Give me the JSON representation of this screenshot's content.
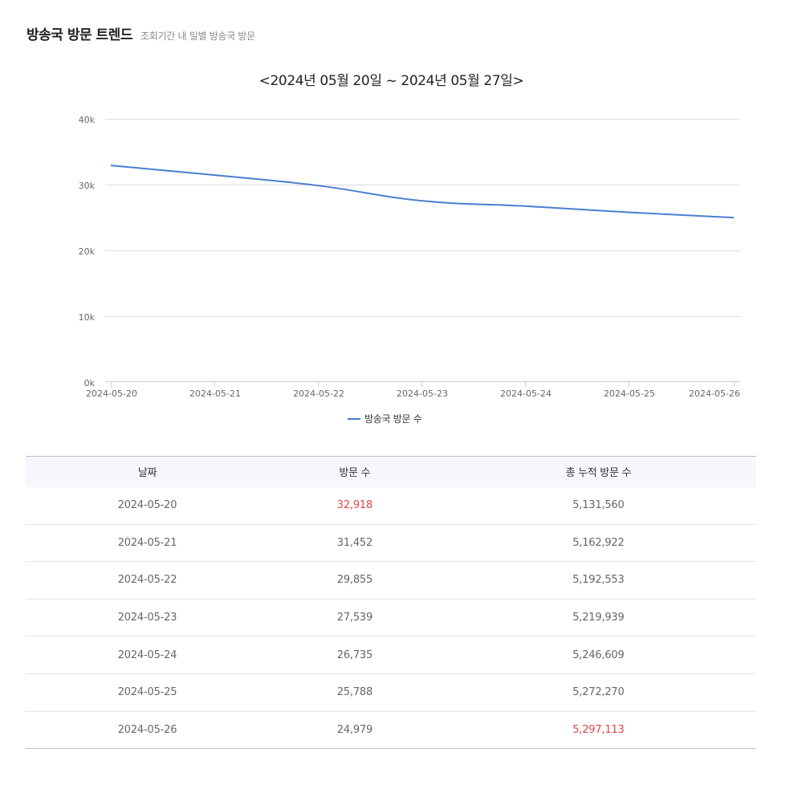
{
  "header": {
    "title": "방송국 방문 트렌드",
    "subtitle": "조회기간 내 일별 방송국 방문"
  },
  "chart": {
    "title": "<2024년 05월 20일 ~ 2024년 05월 27일>",
    "legend_label": "방송국 방문 수",
    "line_color": "#4a7fd1"
  },
  "chart_data": {
    "type": "line",
    "title": "<2024년 05월 20일 ~ 2024년 05월 27일>",
    "xlabel": "",
    "ylabel": "",
    "x": [
      "2024-05-20",
      "2024-05-21",
      "2024-05-22",
      "2024-05-23",
      "2024-05-24",
      "2024-05-25",
      "2024-05-26"
    ],
    "series": [
      {
        "name": "방송국 방문 수",
        "values": [
          32918,
          31452,
          29855,
          27539,
          26735,
          25788,
          24979
        ],
        "color": "#4a7fd1"
      }
    ],
    "yticks": [
      "0k",
      "10k",
      "20k",
      "30k",
      "40k"
    ],
    "ylim": [
      0,
      40000
    ],
    "grid": true,
    "legend_position": "bottom"
  },
  "table": {
    "headers": [
      "날짜",
      "방문 수",
      "총 누적 방문 수"
    ],
    "rows": [
      {
        "date": "2024-05-20",
        "visits": "32,918",
        "total": "5,131,560"
      },
      {
        "date": "2024-05-21",
        "visits": "31,452",
        "total": "5,162,922"
      },
      {
        "date": "2024-05-22",
        "visits": "29,855",
        "total": "5,192,553"
      },
      {
        "date": "2024-05-23",
        "visits": "27,539",
        "total": "5,219,939"
      },
      {
        "date": "2024-05-24",
        "visits": "26,735",
        "total": "5,246,609"
      },
      {
        "date": "2024-05-25",
        "visits": "25,788",
        "total": "5,272,270"
      },
      {
        "date": "2024-05-26",
        "visits": "24,979",
        "total": "5,297,113"
      }
    ],
    "highlight_color": "#e5434a"
  }
}
